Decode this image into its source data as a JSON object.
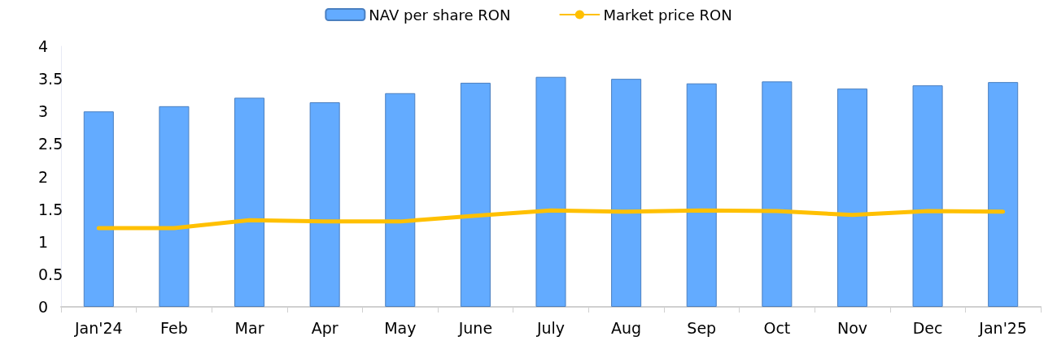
{
  "chart_data": {
    "type": "bar",
    "categories": [
      "Jan'24",
      "Feb",
      "Mar",
      "Apr",
      "May",
      "June",
      "July",
      "Aug",
      "Sep",
      "Oct",
      "Nov",
      "Dec",
      "Jan'25"
    ],
    "series": [
      {
        "name": "NAV per share RON",
        "color": "#63abff",
        "values": [
          3.0,
          3.08,
          3.21,
          3.14,
          3.28,
          3.44,
          3.53,
          3.5,
          3.43,
          3.46,
          3.35,
          3.4,
          3.45
        ]
      },
      {
        "name": "Market price RON",
        "type": "line",
        "color": "#ffc000",
        "values": [
          1.21,
          1.21,
          1.33,
          1.31,
          1.31,
          1.4,
          1.48,
          1.46,
          1.48,
          1.47,
          1.41,
          1.47,
          1.46
        ]
      }
    ],
    "ylim": [
      0,
      4
    ],
    "yticks": [
      0,
      0.5,
      1,
      1.5,
      2,
      2.5,
      3,
      3.5,
      4
    ],
    "grid": false,
    "legend": "top",
    "marker": "none",
    "line_style": "solid"
  }
}
